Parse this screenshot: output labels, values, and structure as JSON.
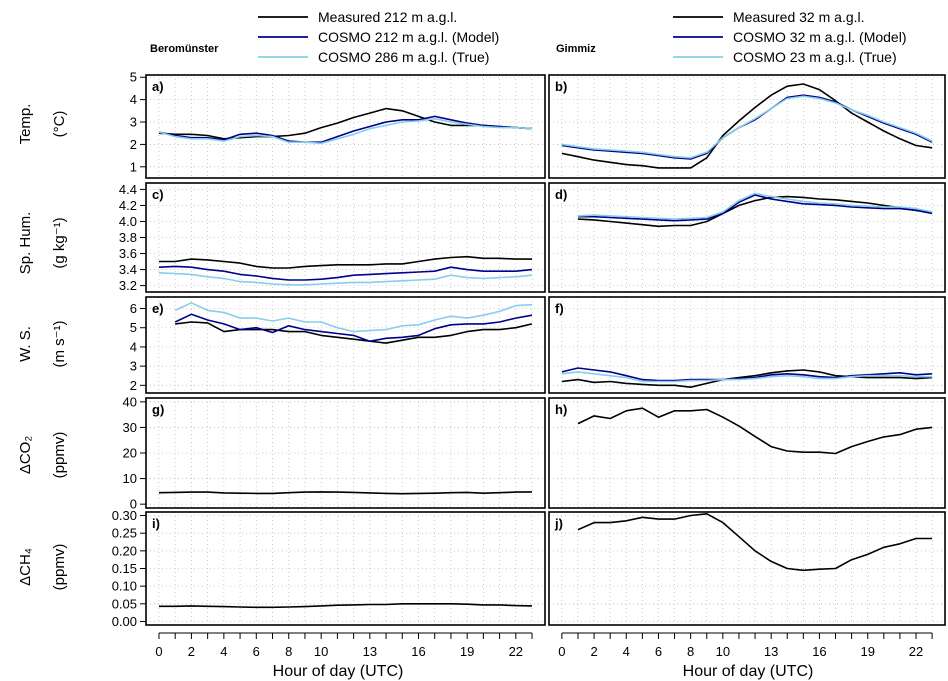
{
  "figure": {
    "x_axis_label": "Hour of day (UTC)",
    "x_ticks": [
      0,
      2,
      4,
      6,
      8,
      10,
      13,
      16,
      19,
      22
    ],
    "columns": [
      {
        "id": "beromunster",
        "site": "Beromünster",
        "legend": [
          "Measured 212 m a.g.l.",
          "COSMO 212 m a.g.l. (Model)",
          "COSMO 286 m a.g.l. (True)"
        ]
      },
      {
        "id": "gimmiz",
        "site": "Gimmiz",
        "legend": [
          "Measured 32 m a.g.l.",
          "COSMO 32 m a.g.l. (Model)",
          "COSMO 23 m a.g.l. (True)"
        ]
      }
    ],
    "rows": [
      {
        "label": "Temp.",
        "unit": "(°C)"
      },
      {
        "label": "Sp. Hum.",
        "unit": "(g kg⁻¹)"
      },
      {
        "label": "W. S.",
        "unit": "(m s⁻¹)"
      },
      {
        "label": "ΔCO₂",
        "unit": "(ppmv)"
      },
      {
        "label": "ΔCH₄",
        "unit": "(ppmv)"
      }
    ],
    "colors": {
      "measured": "#000000",
      "model": "#00008b",
      "true": "#87ceeb",
      "grid": "#bfbfbf"
    }
  },
  "chart_data": [
    {
      "type": "line",
      "panel": "a)",
      "column": "Beromünster",
      "row": "Temp.",
      "ylim": [
        0.5,
        5.1
      ],
      "yticks": [
        1,
        2,
        3,
        4,
        5
      ],
      "x": [
        0,
        1,
        2,
        3,
        4,
        5,
        6,
        7,
        8,
        9,
        10,
        11,
        12,
        13,
        14,
        15,
        16,
        17,
        18,
        19,
        20,
        21,
        22,
        23
      ],
      "series": [
        {
          "name": "Measured 212 m a.g.l.",
          "values": [
            2.5,
            2.45,
            2.45,
            2.4,
            2.25,
            2.3,
            2.35,
            2.35,
            2.4,
            2.5,
            2.75,
            2.95,
            3.2,
            3.4,
            3.6,
            3.5,
            3.25,
            3.0,
            2.85,
            2.85,
            2.85,
            2.8,
            2.75,
            2.7
          ]
        },
        {
          "name": "COSMO 212 m a.g.l. (Model)",
          "values": [
            2.55,
            2.4,
            2.3,
            2.3,
            2.2,
            2.45,
            2.5,
            2.4,
            2.15,
            2.1,
            2.1,
            2.35,
            2.6,
            2.8,
            3.0,
            3.1,
            3.1,
            3.25,
            3.1,
            2.95,
            2.85,
            2.8,
            2.75,
            2.7
          ]
        },
        {
          "name": "COSMO 286 m a.g.l. (True)",
          "values": [
            2.55,
            2.35,
            2.25,
            2.25,
            2.15,
            2.35,
            2.4,
            2.35,
            2.1,
            2.1,
            2.05,
            2.25,
            2.45,
            2.7,
            2.85,
            3.0,
            3.05,
            3.15,
            3.0,
            2.9,
            2.8,
            2.75,
            2.75,
            2.7
          ]
        }
      ]
    },
    {
      "type": "line",
      "panel": "b)",
      "column": "Gimmiz",
      "row": "Temp.",
      "ylim": [
        0.5,
        5.1
      ],
      "yticks": [
        1,
        2,
        3,
        4,
        5
      ],
      "x": [
        0,
        1,
        2,
        3,
        4,
        5,
        6,
        7,
        8,
        9,
        10,
        11,
        12,
        13,
        14,
        15,
        16,
        17,
        18,
        19,
        20,
        21,
        22,
        23
      ],
      "series": [
        {
          "name": "Measured 32 m a.g.l.",
          "values": [
            1.6,
            1.45,
            1.3,
            1.2,
            1.1,
            1.05,
            0.95,
            0.95,
            0.95,
            1.4,
            2.4,
            3.05,
            3.65,
            4.2,
            4.6,
            4.7,
            4.45,
            3.95,
            3.4,
            3.0,
            2.6,
            2.25,
            1.95,
            1.85
          ]
        },
        {
          "name": "COSMO 32 m a.g.l. (Model)",
          "values": [
            1.95,
            1.85,
            1.75,
            1.7,
            1.65,
            1.6,
            1.5,
            1.4,
            1.35,
            1.6,
            2.3,
            2.75,
            3.1,
            3.6,
            4.1,
            4.2,
            4.1,
            3.9,
            3.55,
            3.25,
            2.95,
            2.7,
            2.45,
            2.1
          ]
        },
        {
          "name": "COSMO 23 m a.g.l. (True)",
          "values": [
            2.0,
            1.9,
            1.8,
            1.75,
            1.7,
            1.65,
            1.55,
            1.45,
            1.4,
            1.65,
            2.3,
            2.75,
            3.15,
            3.6,
            4.05,
            4.15,
            4.05,
            3.85,
            3.55,
            3.3,
            3.0,
            2.75,
            2.5,
            2.15
          ]
        }
      ]
    },
    {
      "type": "line",
      "panel": "c)",
      "column": "Beromünster",
      "row": "Sp. Hum.",
      "ylim": [
        3.12,
        4.48
      ],
      "yticks": [
        3.2,
        3.4,
        3.6,
        3.8,
        4.0,
        4.2,
        4.4
      ],
      "x": [
        0,
        1,
        2,
        3,
        4,
        5,
        6,
        7,
        8,
        9,
        10,
        11,
        12,
        13,
        14,
        15,
        16,
        17,
        18,
        19,
        20,
        21,
        22,
        23
      ],
      "series": [
        {
          "name": "Measured 212 m a.g.l.",
          "values": [
            3.5,
            3.5,
            3.53,
            3.52,
            3.5,
            3.48,
            3.44,
            3.42,
            3.42,
            3.44,
            3.45,
            3.46,
            3.46,
            3.46,
            3.47,
            3.47,
            3.5,
            3.53,
            3.55,
            3.56,
            3.54,
            3.54,
            3.53,
            3.53
          ]
        },
        {
          "name": "COSMO 212 m a.g.l. (Model)",
          "values": [
            3.43,
            3.44,
            3.43,
            3.4,
            3.38,
            3.34,
            3.32,
            3.29,
            3.27,
            3.27,
            3.28,
            3.3,
            3.33,
            3.34,
            3.35,
            3.36,
            3.37,
            3.38,
            3.43,
            3.4,
            3.38,
            3.38,
            3.38,
            3.4
          ]
        },
        {
          "name": "COSMO 286 m a.g.l. (True)",
          "values": [
            3.36,
            3.35,
            3.34,
            3.31,
            3.29,
            3.25,
            3.24,
            3.22,
            3.21,
            3.21,
            3.22,
            3.23,
            3.24,
            3.24,
            3.25,
            3.26,
            3.27,
            3.28,
            3.33,
            3.3,
            3.29,
            3.3,
            3.31,
            3.33
          ]
        }
      ]
    },
    {
      "type": "line",
      "panel": "d)",
      "column": "Gimmiz",
      "row": "Sp. Hum.",
      "ylim": [
        3.12,
        4.48
      ],
      "yticks": [
        3.2,
        3.4,
        3.6,
        3.8,
        4.0,
        4.2,
        4.4
      ],
      "x": [
        1,
        2,
        3,
        4,
        5,
        6,
        7,
        8,
        9,
        10,
        11,
        12,
        13,
        14,
        15,
        16,
        17,
        18,
        19,
        20,
        21,
        22,
        23
      ],
      "series": [
        {
          "name": "Measured 32 m a.g.l.",
          "values": [
            4.03,
            4.02,
            4.0,
            3.98,
            3.96,
            3.94,
            3.95,
            3.95,
            4.0,
            4.1,
            4.2,
            4.26,
            4.3,
            4.31,
            4.3,
            4.28,
            4.27,
            4.25,
            4.23,
            4.2,
            4.17,
            4.14,
            4.12
          ]
        },
        {
          "name": "COSMO 32 m a.g.l. (Model)",
          "values": [
            4.06,
            4.06,
            4.05,
            4.04,
            4.03,
            4.02,
            4.01,
            4.02,
            4.03,
            4.1,
            4.24,
            4.33,
            4.28,
            4.25,
            4.22,
            4.21,
            4.2,
            4.18,
            4.17,
            4.16,
            4.16,
            4.14,
            4.1
          ]
        },
        {
          "name": "COSMO 23 m a.g.l. (True)",
          "values": [
            4.07,
            4.08,
            4.07,
            4.06,
            4.05,
            4.04,
            4.03,
            4.04,
            4.05,
            4.12,
            4.26,
            4.35,
            4.31,
            4.28,
            4.25,
            4.23,
            4.22,
            4.2,
            4.19,
            4.18,
            4.18,
            4.16,
            4.12
          ]
        }
      ]
    },
    {
      "type": "line",
      "panel": "e)",
      "column": "Beromünster",
      "row": "W. S.",
      "ylim": [
        1.6,
        6.6
      ],
      "yticks": [
        2,
        3,
        4,
        5,
        6
      ],
      "x": [
        1,
        2,
        3,
        4,
        5,
        6,
        7,
        8,
        9,
        10,
        11,
        12,
        13,
        14,
        15,
        16,
        17,
        18,
        19,
        20,
        21,
        22,
        23
      ],
      "series": [
        {
          "name": "Measured 212 m a.g.l.",
          "values": [
            5.2,
            5.3,
            5.25,
            4.8,
            4.9,
            4.9,
            4.9,
            4.8,
            4.8,
            4.6,
            4.5,
            4.4,
            4.3,
            4.2,
            4.35,
            4.5,
            4.5,
            4.6,
            4.8,
            4.9,
            4.9,
            5.0,
            5.2
          ]
        },
        {
          "name": "COSMO 212 m a.g.l. (Model)",
          "values": [
            5.3,
            5.7,
            5.4,
            5.2,
            4.9,
            5.0,
            4.75,
            5.1,
            4.9,
            4.8,
            4.7,
            4.6,
            4.3,
            4.45,
            4.5,
            4.6,
            4.95,
            5.15,
            5.2,
            5.2,
            5.3,
            5.5,
            5.65
          ]
        },
        {
          "name": "COSMO 286 m a.g.l. (True)",
          "values": [
            5.9,
            6.3,
            5.9,
            5.8,
            5.5,
            5.5,
            5.35,
            5.5,
            5.3,
            5.3,
            5.0,
            4.8,
            4.85,
            4.9,
            5.1,
            5.15,
            5.4,
            5.6,
            5.5,
            5.65,
            5.85,
            6.15,
            6.2
          ]
        }
      ]
    },
    {
      "type": "line",
      "panel": "f)",
      "column": "Gimmiz",
      "row": "W. S.",
      "ylim": [
        1.6,
        6.6
      ],
      "yticks": [
        2,
        3,
        4,
        5,
        6
      ],
      "x": [
        0,
        1,
        2,
        3,
        4,
        5,
        6,
        7,
        8,
        9,
        10,
        11,
        12,
        13,
        14,
        15,
        16,
        17,
        18,
        19,
        20,
        21,
        22,
        23
      ],
      "series": [
        {
          "name": "Measured 32 m a.g.l.",
          "values": [
            2.2,
            2.3,
            2.15,
            2.2,
            2.1,
            2.05,
            2.0,
            2.0,
            1.9,
            2.1,
            2.3,
            2.4,
            2.5,
            2.65,
            2.75,
            2.8,
            2.7,
            2.5,
            2.45,
            2.4,
            2.4,
            2.4,
            2.35,
            2.4
          ]
        },
        {
          "name": "COSMO 32 m a.g.l. (Model)",
          "values": [
            2.7,
            2.9,
            2.8,
            2.7,
            2.5,
            2.3,
            2.25,
            2.25,
            2.3,
            2.3,
            2.3,
            2.35,
            2.4,
            2.55,
            2.6,
            2.55,
            2.45,
            2.4,
            2.5,
            2.55,
            2.6,
            2.65,
            2.55,
            2.6
          ]
        },
        {
          "name": "COSMO 23 m a.g.l. (True)",
          "values": [
            2.6,
            2.7,
            2.6,
            2.5,
            2.4,
            2.2,
            2.2,
            2.2,
            2.25,
            2.25,
            2.3,
            2.3,
            2.35,
            2.45,
            2.5,
            2.45,
            2.35,
            2.35,
            2.45,
            2.5,
            2.5,
            2.5,
            2.45,
            2.45
          ]
        }
      ]
    },
    {
      "type": "line",
      "panel": "g)",
      "column": "Beromünster",
      "row": "ΔCO₂",
      "ylim": [
        -1.5,
        41.5
      ],
      "yticks": [
        0,
        10,
        20,
        30,
        40
      ],
      "x": [
        0,
        1,
        2,
        3,
        4,
        5,
        6,
        7,
        8,
        9,
        10,
        11,
        12,
        13,
        14,
        15,
        16,
        17,
        18,
        19,
        20,
        21,
        22,
        23
      ],
      "series": [
        {
          "name": "Measured 212 m a.g.l.",
          "values": [
            4.5,
            4.6,
            4.7,
            4.7,
            4.4,
            4.3,
            4.2,
            4.2,
            4.5,
            4.7,
            4.8,
            4.7,
            4.6,
            4.4,
            4.2,
            4.1,
            4.2,
            4.3,
            4.5,
            4.6,
            4.3,
            4.5,
            4.7,
            4.8
          ]
        }
      ]
    },
    {
      "type": "line",
      "panel": "h)",
      "column": "Gimmiz",
      "row": "ΔCO₂",
      "ylim": [
        -1.5,
        41.5
      ],
      "yticks": [
        0,
        10,
        20,
        30,
        40
      ],
      "x": [
        1,
        2,
        3,
        4,
        5,
        6,
        7,
        8,
        9,
        10,
        11,
        12,
        13,
        14,
        15,
        16,
        17,
        18,
        19,
        20,
        21,
        22,
        23
      ],
      "series": [
        {
          "name": "Measured 32 m a.g.l.",
          "values": [
            31.5,
            34.5,
            33.5,
            36.5,
            37.5,
            34.0,
            36.5,
            36.5,
            37.0,
            34.0,
            30.5,
            26.5,
            22.5,
            20.8,
            20.3,
            20.3,
            19.8,
            22.5,
            24.5,
            26.3,
            27.2,
            29.3,
            30.0
          ]
        }
      ]
    },
    {
      "type": "line",
      "panel": "i)",
      "column": "Beromünster",
      "row": "ΔCH₄",
      "ylim": [
        -0.01,
        0.31
      ],
      "yticks": [
        0.0,
        0.05,
        0.1,
        0.15,
        0.2,
        0.25,
        0.3
      ],
      "x": [
        0,
        1,
        2,
        3,
        4,
        5,
        6,
        7,
        8,
        9,
        10,
        11,
        12,
        13,
        14,
        15,
        16,
        17,
        18,
        19,
        20,
        21,
        22,
        23
      ],
      "series": [
        {
          "name": "Measured 212 m a.g.l.",
          "values": [
            0.043,
            0.043,
            0.044,
            0.043,
            0.042,
            0.041,
            0.04,
            0.04,
            0.041,
            0.042,
            0.044,
            0.046,
            0.047,
            0.048,
            0.048,
            0.05,
            0.05,
            0.05,
            0.05,
            0.049,
            0.047,
            0.047,
            0.045,
            0.044
          ]
        }
      ]
    },
    {
      "type": "line",
      "panel": "j)",
      "column": "Gimmiz",
      "row": "ΔCH₄",
      "ylim": [
        -0.01,
        0.31
      ],
      "yticks": [
        0.0,
        0.05,
        0.1,
        0.15,
        0.2,
        0.25,
        0.3
      ],
      "x": [
        1,
        2,
        3,
        4,
        5,
        6,
        7,
        8,
        9,
        10,
        11,
        12,
        13,
        14,
        15,
        16,
        17,
        18,
        19,
        20,
        21,
        22,
        23
      ],
      "series": [
        {
          "name": "Measured 32 m a.g.l.",
          "values": [
            0.26,
            0.28,
            0.28,
            0.285,
            0.295,
            0.29,
            0.29,
            0.3,
            0.305,
            0.28,
            0.24,
            0.2,
            0.17,
            0.15,
            0.145,
            0.148,
            0.15,
            0.175,
            0.19,
            0.21,
            0.22,
            0.235,
            0.235
          ]
        }
      ]
    }
  ]
}
